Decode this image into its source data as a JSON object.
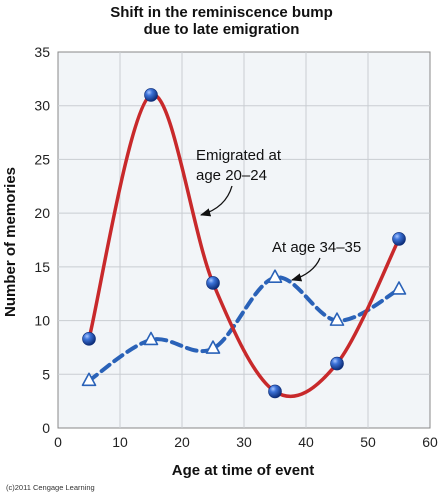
{
  "chart_data": {
    "type": "line",
    "title_line1": "Shift in the reminiscence bump",
    "title_line2": "due to late emigration",
    "xlabel": "Age at time of event",
    "ylabel": "Number of memories",
    "xlim": [
      0,
      60
    ],
    "ylim": [
      0,
      35
    ],
    "xticks": [
      0,
      10,
      20,
      30,
      40,
      50,
      60
    ],
    "yticks": [
      0,
      5,
      10,
      15,
      20,
      25,
      30,
      35
    ],
    "grid": true,
    "series": [
      {
        "name": "Emigrated at age 20–24",
        "x": [
          5,
          15,
          25,
          35,
          45,
          55
        ],
        "values": [
          8.3,
          31,
          13.5,
          3.4,
          6,
          17.6
        ],
        "color": "#c8292b",
        "marker": "circle",
        "line_style": "solid"
      },
      {
        "name": "At age 34–35",
        "x": [
          5,
          15,
          25,
          35,
          45,
          55
        ],
        "values": [
          4.4,
          8.2,
          7.4,
          14,
          10,
          12.9
        ],
        "color": "#2a62b8",
        "marker": "triangle",
        "line_style": "dashed"
      }
    ],
    "annotations": [
      {
        "line1": "Emigrated at",
        "line2": "age 20–24"
      },
      {
        "line1": "At age 34–35",
        "line2": ""
      }
    ]
  },
  "credit": "(c)2011 Cengage Learning",
  "colors": {
    "plot_background": "#f2f5f8",
    "grid": "#c9cdd2",
    "red_series": "#c8292b",
    "blue_series": "#2a62b8"
  }
}
